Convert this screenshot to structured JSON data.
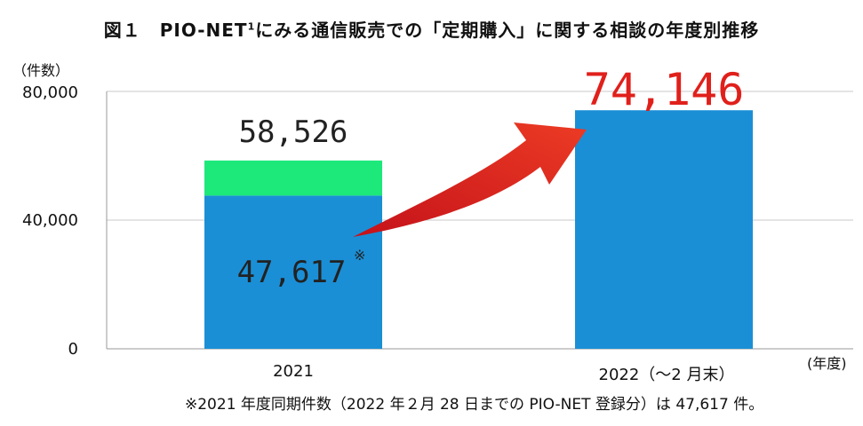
{
  "chart_data": {
    "type": "bar",
    "title_prefix": "図１　PIO-NET",
    "title_sup": "1",
    "title_suffix": "にみる通信販売での「定期購入」に関する相談の年度別推移",
    "ylabel": "（件数）",
    "xlabel": "(年度)",
    "ylim": [
      0,
      80000
    ],
    "yticks": [
      "80,000",
      "40,000",
      "0"
    ],
    "ytick_values": [
      80000,
      40000,
      0
    ],
    "grid": true,
    "categories": [
      "2021",
      "2022（〜2 月末）"
    ],
    "series": [
      {
        "values": [
          47617,
          74146
        ],
        "color": "#1a8fd6"
      },
      {
        "values": [
          10909,
          0
        ],
        "color": "#1de87a"
      }
    ],
    "totals": [
      58526,
      74146
    ],
    "data_labels": {
      "total_2021": "58,526",
      "partial_2021": "47,617",
      "partial_mark": "※",
      "total_2022": "74,146"
    },
    "colors": {
      "bar_blue": "#1a8fd6",
      "bar_green": "#1de87a",
      "highlight_red": "#e0201b",
      "arrow_red": "#e32b1c"
    },
    "annotation_arrow": "red-arrow-2021-to-2022",
    "footnote": "※2021 年度同期件数（2022 年２月 28 日までの PIO-NET 登録分）は 47,617 件。"
  }
}
